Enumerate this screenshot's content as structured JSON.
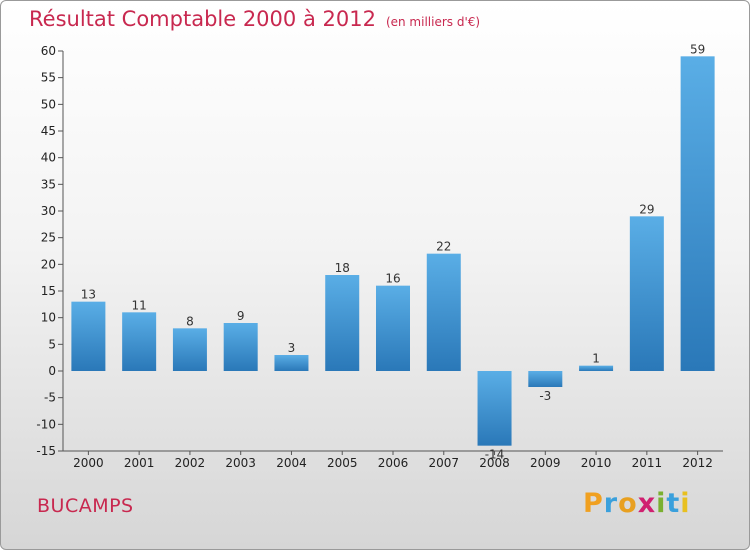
{
  "header": {
    "title": "Résultat Comptable 2000 à 2012",
    "subtitle": "(en milliers d'€)"
  },
  "footer": {
    "commune": "BUCAMPS",
    "logo": {
      "letters": [
        "P",
        "r",
        "o",
        "x",
        "i",
        "t",
        "i"
      ],
      "colors": [
        "#f0a020",
        "#3aa0dc",
        "#e8a020",
        "#d02070",
        "#7ab030",
        "#3aa0dc",
        "#e8c020"
      ]
    }
  },
  "chart_data": {
    "type": "bar",
    "title": "Résultat Comptable 2000 à 2012",
    "subtitle": "(en milliers d'€)",
    "categories": [
      "2000",
      "2001",
      "2002",
      "2003",
      "2004",
      "2005",
      "2006",
      "2007",
      "2008",
      "2009",
      "2010",
      "2011",
      "2012"
    ],
    "values": [
      13,
      11,
      8,
      9,
      3,
      18,
      16,
      22,
      -14,
      -3,
      1,
      29,
      59
    ],
    "ylim": [
      -15,
      60
    ],
    "yticks": [
      -15,
      -10,
      -5,
      0,
      5,
      10,
      15,
      20,
      25,
      30,
      35,
      40,
      45,
      50,
      55,
      60
    ],
    "xlabel": "",
    "ylabel": "",
    "grid": false,
    "colors": {
      "bar_light": "#5aaee6",
      "bar_dark": "#2a78b8",
      "axis": "#555555"
    }
  }
}
